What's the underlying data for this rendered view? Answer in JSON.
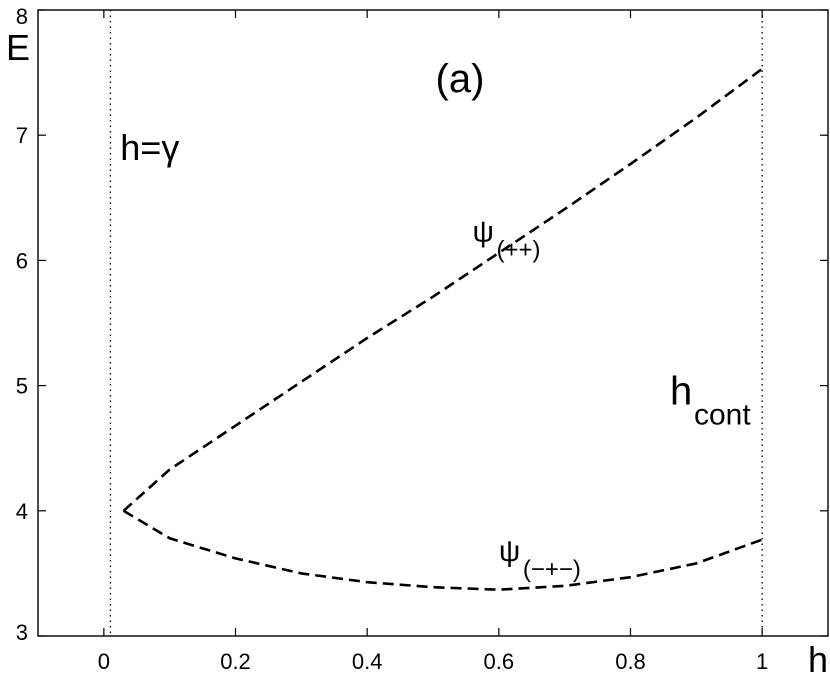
{
  "chart_data": {
    "type": "line",
    "panel_label": "(a)",
    "xlabel": "h",
    "ylabel": "E",
    "xlim": [
      -0.1,
      1.1
    ],
    "ylim": [
      3,
      8
    ],
    "xticks": [
      0,
      0.2,
      0.4,
      0.6,
      0.8,
      1
    ],
    "xtick_labels": [
      "0",
      "0.2",
      "0.4",
      "0.6",
      "0.8",
      "1"
    ],
    "yticks": [
      3,
      4,
      5,
      6,
      7,
      8
    ],
    "ytick_labels": [
      "3",
      "4",
      "5",
      "6",
      "7",
      "8"
    ],
    "grid": false,
    "series": [
      {
        "label_base": "ψ",
        "label_sub": "(++)",
        "label_at": [
          0.56,
          6.15
        ],
        "style": "dashed",
        "x": [
          0.03,
          0.1,
          0.2,
          0.3,
          0.4,
          0.5,
          0.6,
          0.7,
          0.8,
          0.9,
          1.0
        ],
        "y": [
          4.0,
          4.33,
          4.68,
          5.03,
          5.38,
          5.71,
          6.06,
          6.41,
          6.77,
          7.14,
          7.53
        ]
      },
      {
        "label_base": "ψ",
        "label_sub": "(−+−)",
        "label_at": [
          0.6,
          3.6
        ],
        "style": "dashed",
        "x": [
          0.03,
          0.1,
          0.2,
          0.3,
          0.4,
          0.5,
          0.6,
          0.7,
          0.8,
          0.9,
          1.0
        ],
        "y": [
          4.0,
          3.78,
          3.62,
          3.5,
          3.43,
          3.39,
          3.37,
          3.4,
          3.47,
          3.58,
          3.77
        ]
      }
    ],
    "vlines": [
      {
        "x": 0.01,
        "style": "dotted",
        "label": "h=γ",
        "label_at": [
          0.025,
          6.8
        ]
      },
      {
        "x": 1.0,
        "style": "dotted",
        "label_base": "h",
        "label_sub": "cont",
        "label_at": [
          0.86,
          4.85
        ]
      }
    ]
  }
}
